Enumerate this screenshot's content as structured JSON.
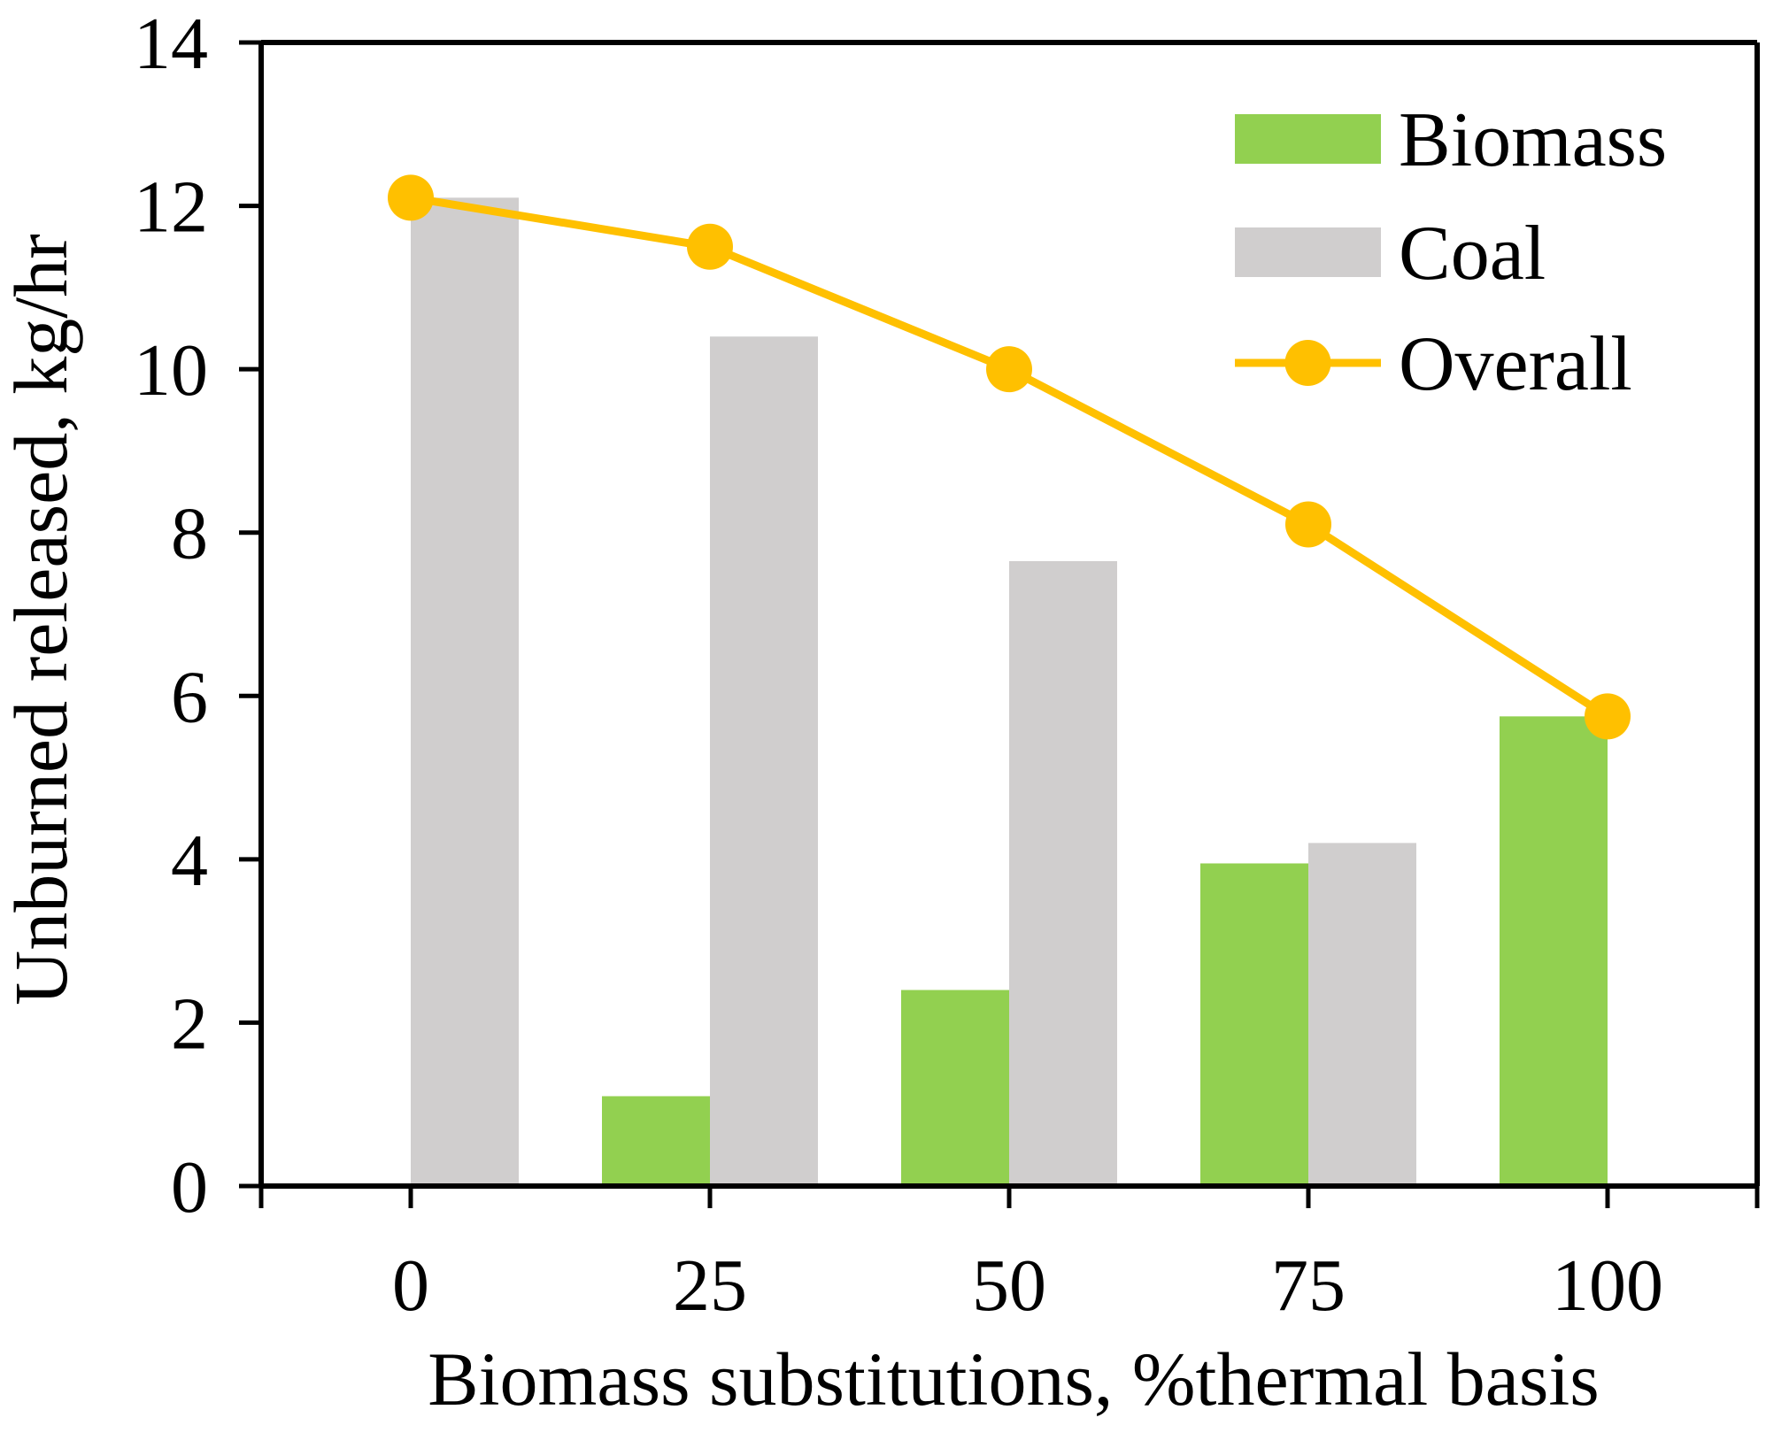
{
  "chart_data": {
    "type": "bar",
    "x": [
      0,
      25,
      50,
      75,
      100
    ],
    "categories": [
      "0",
      "25",
      "50",
      "75",
      "100"
    ],
    "series": [
      {
        "name": "Biomass",
        "kind": "bar",
        "color": "#92d050",
        "values": [
          0,
          1.1,
          2.4,
          3.95,
          5.75
        ]
      },
      {
        "name": "Coal",
        "kind": "bar",
        "color": "#d0cece",
        "values": [
          12.1,
          10.4,
          7.65,
          4.2,
          0
        ]
      },
      {
        "name": "Overall",
        "kind": "line",
        "color": "#ffc000",
        "values": [
          12.1,
          11.5,
          10.0,
          8.1,
          5.75
        ]
      }
    ],
    "title": "",
    "xlabel": "Biomass substitutions, %thermal basis",
    "ylabel": "Unburned released, kg/hr",
    "ylim": [
      0,
      14
    ],
    "yticks": [
      0,
      2,
      4,
      6,
      8,
      10,
      12,
      14
    ],
    "grid": false,
    "legend_position": "top-right"
  }
}
